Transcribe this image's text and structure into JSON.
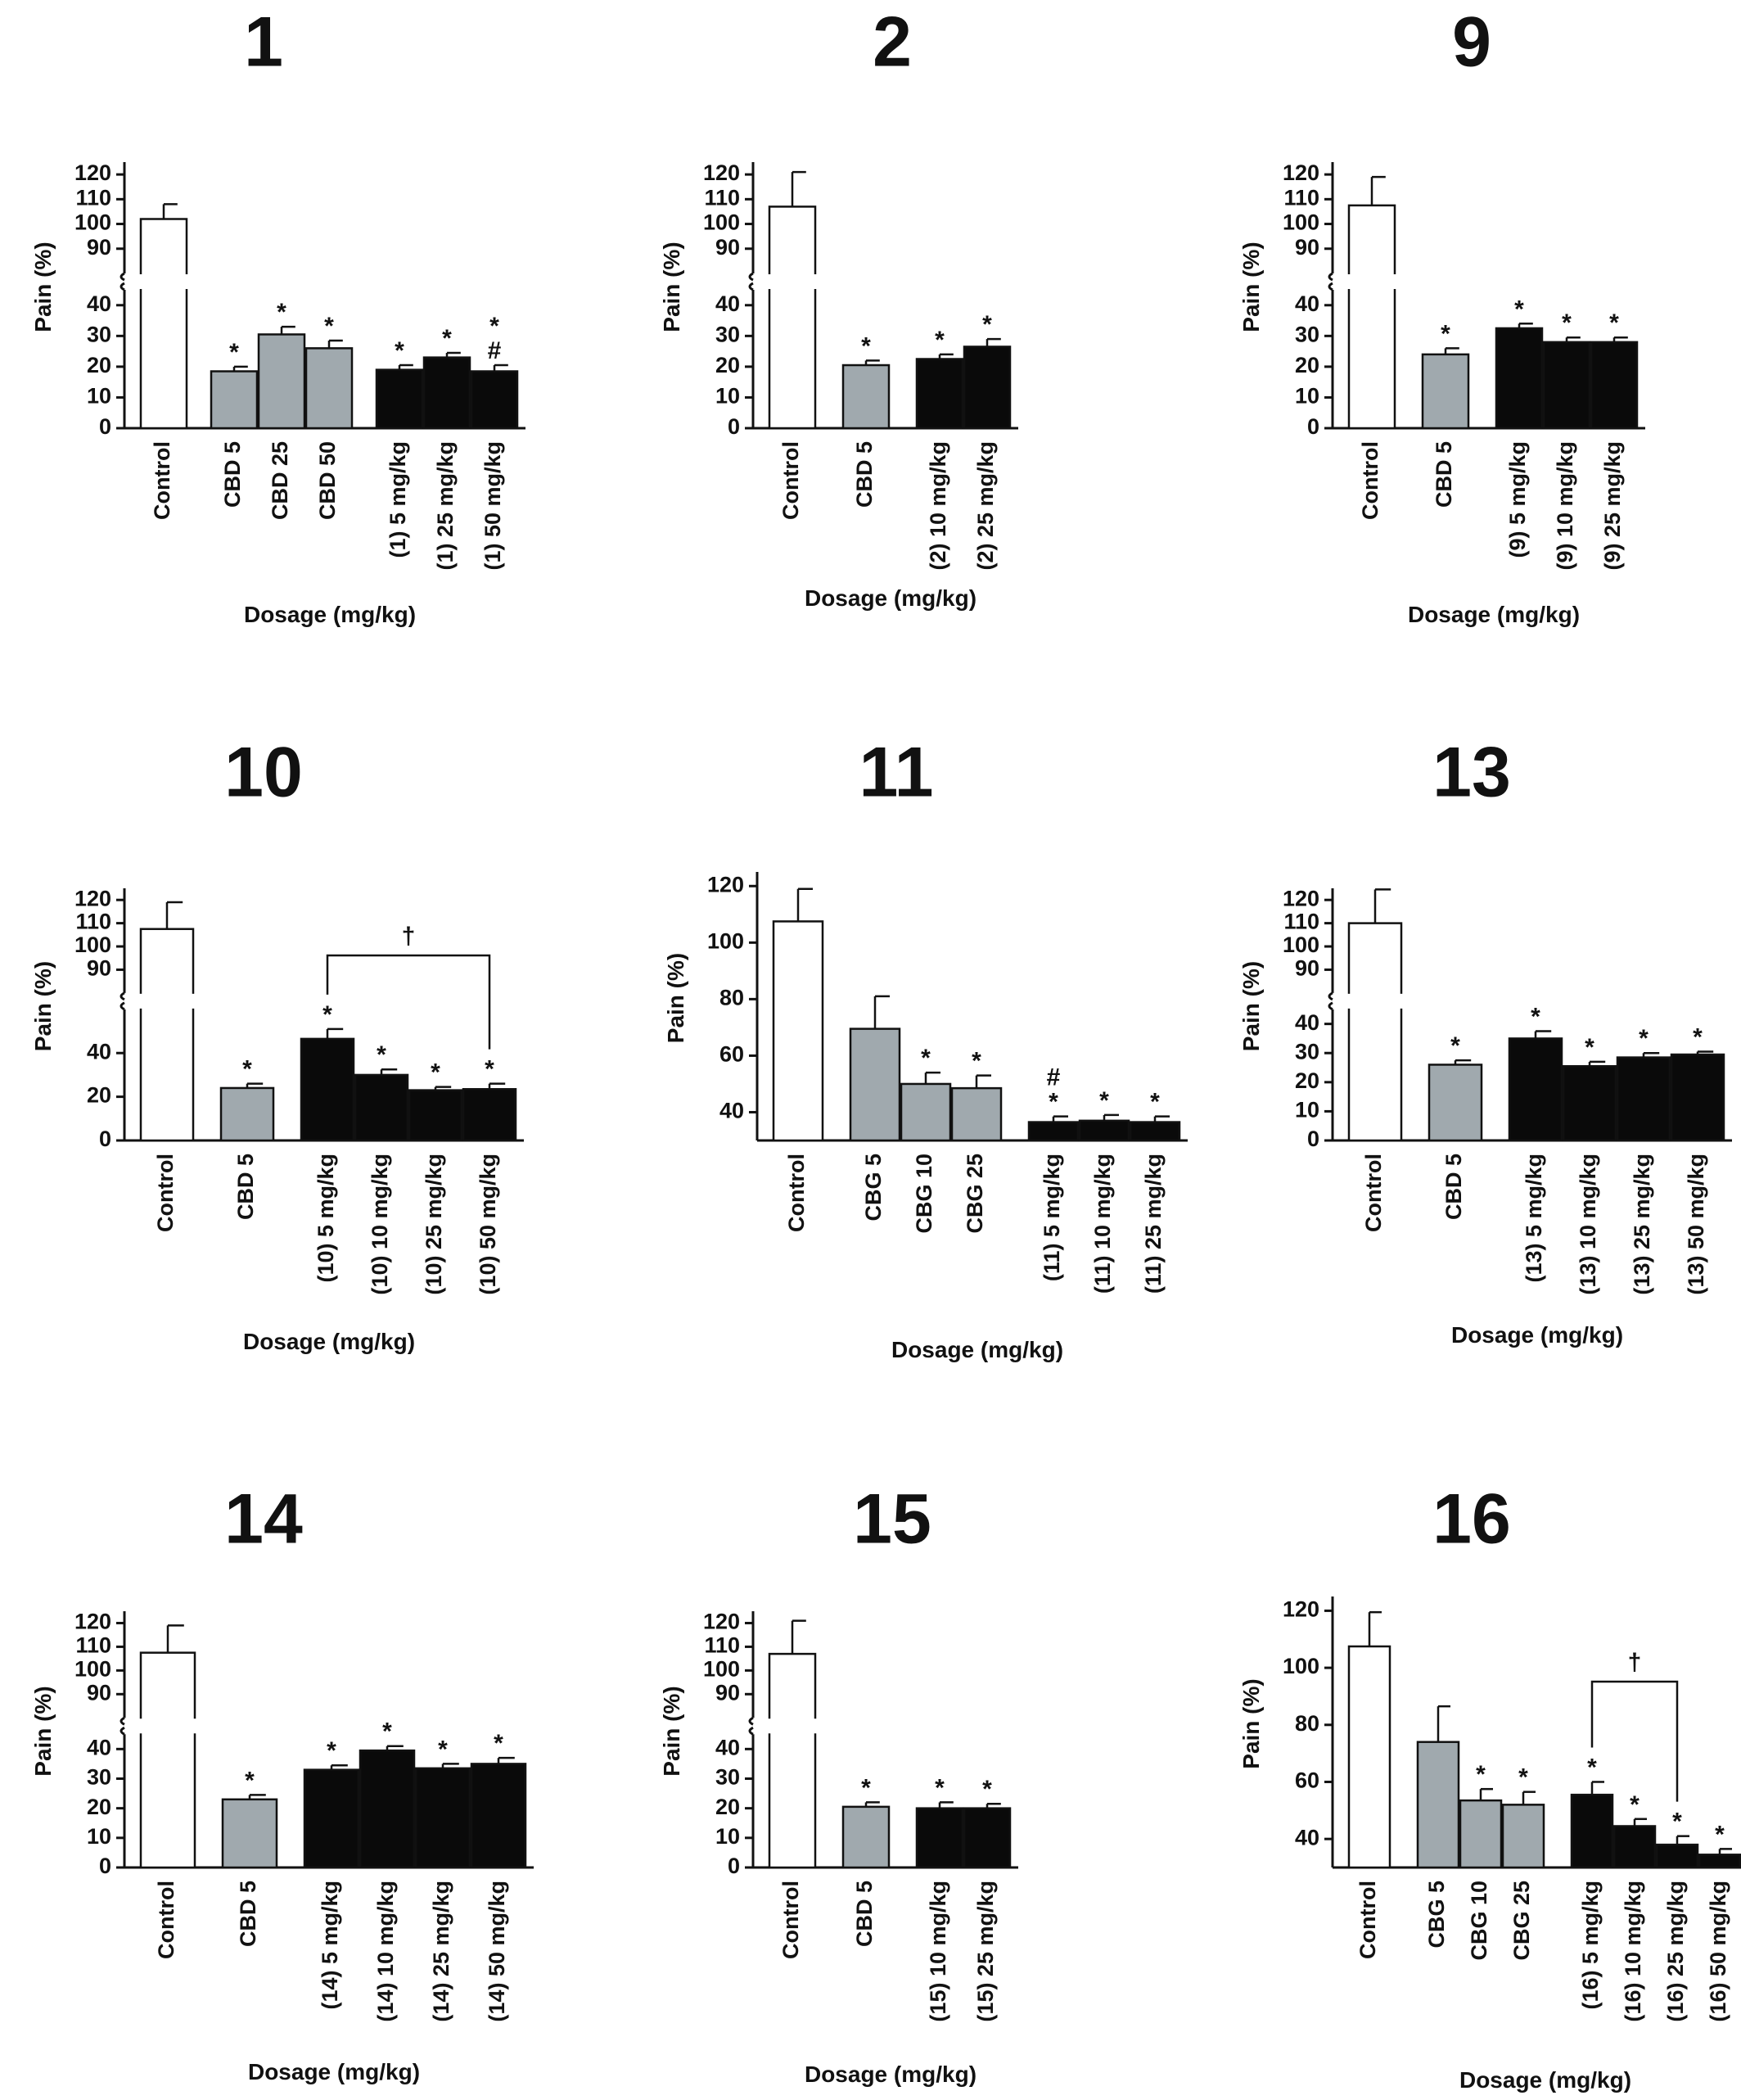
{
  "colors": {
    "control": "#ffffff",
    "reference": "#a0a9ae",
    "compound": "#0a0a0a",
    "ink": "#111111"
  },
  "chart_data": [
    {
      "type": "bar",
      "title": "1",
      "xlabel": "Dosage (mg/kg)",
      "ylabel": "Pain (%)",
      "axis_break": true,
      "ylim_lower": [
        0,
        45
      ],
      "ylim_upper": [
        80,
        125
      ],
      "yticks_lower": [
        0,
        10,
        20,
        30,
        40
      ],
      "yticks_upper": [
        90,
        100,
        110,
        120
      ],
      "groups": [
        [
          "Control"
        ],
        [
          "CBD 5",
          "CBD 25",
          "CBD 50"
        ],
        [
          "(1) 5 mg/kg",
          "(1) 25 mg/kg",
          "(1) 50 mg/kg"
        ]
      ],
      "categories": [
        "Control",
        "CBD 5",
        "CBD 25",
        "CBD 50",
        "(1) 5 mg/kg",
        "(1) 25 mg/kg",
        "(1) 50 mg/kg"
      ],
      "values": [
        102,
        18.5,
        30.5,
        26,
        19,
        23,
        18.5
      ],
      "errors": [
        6,
        1.5,
        2.5,
        2.5,
        1.5,
        1.5,
        2
      ],
      "kinds": [
        "control",
        "reference",
        "reference",
        "reference",
        "compound",
        "compound",
        "compound"
      ],
      "marks": [
        "",
        "*",
        "*",
        "*",
        "*",
        "*",
        "*\n#"
      ],
      "bracket": null
    },
    {
      "type": "bar",
      "title": "2",
      "xlabel": "Dosage (mg/kg)",
      "ylabel": "Pain (%)",
      "axis_break": true,
      "ylim_lower": [
        0,
        45
      ],
      "ylim_upper": [
        80,
        125
      ],
      "yticks_lower": [
        0,
        10,
        20,
        30,
        40
      ],
      "yticks_upper": [
        90,
        100,
        110,
        120
      ],
      "groups": [
        [
          "Control"
        ],
        [
          "CBD 5"
        ],
        [
          "(2) 10 mg/kg",
          "(2) 25 mg/kg"
        ]
      ],
      "categories": [
        "Control",
        "CBD 5",
        "(2) 10 mg/kg",
        "(2) 25 mg/kg"
      ],
      "values": [
        107,
        20.5,
        22.5,
        26.5
      ],
      "errors": [
        14,
        1.5,
        1.5,
        2.5
      ],
      "kinds": [
        "control",
        "reference",
        "compound",
        "compound"
      ],
      "marks": [
        "",
        "*",
        "*",
        "*"
      ],
      "bracket": null
    },
    {
      "type": "bar",
      "title": "9",
      "xlabel": "Dosage (mg/kg)",
      "ylabel": "Pain (%)",
      "axis_break": true,
      "ylim_lower": [
        0,
        45
      ],
      "ylim_upper": [
        80,
        125
      ],
      "yticks_lower": [
        0,
        10,
        20,
        30,
        40
      ],
      "yticks_upper": [
        90,
        100,
        110,
        120
      ],
      "groups": [
        [
          "Control"
        ],
        [
          "CBD 5"
        ],
        [
          "(9) 5 mg/kg",
          "(9) 10 mg/kg",
          "(9) 25 mg/kg"
        ]
      ],
      "categories": [
        "Control",
        "CBD 5",
        "(9) 5 mg/kg",
        "(9) 10 mg/kg",
        "(9) 25 mg/kg"
      ],
      "values": [
        107.5,
        24,
        32.5,
        28,
        28
      ],
      "errors": [
        11.5,
        2,
        1.5,
        1.5,
        1.5
      ],
      "kinds": [
        "control",
        "reference",
        "compound",
        "compound",
        "compound"
      ],
      "marks": [
        "",
        "*",
        "*",
        "*",
        "*"
      ],
      "bracket": null
    },
    {
      "type": "bar",
      "title": "10",
      "xlabel": "Dosage (mg/kg)",
      "ylabel": "Pain (%)",
      "axis_break": true,
      "ylim_lower": [
        0,
        60
      ],
      "ylim_upper": [
        80,
        125
      ],
      "yticks_lower": [
        0,
        20,
        40
      ],
      "yticks_upper": [
        90,
        100,
        110,
        120
      ],
      "groups": [
        [
          "Control"
        ],
        [
          "CBD 5"
        ],
        [
          "(10) 5 mg/kg",
          "(10) 10 mg/kg",
          "(10) 25 mg/kg",
          "(10) 50 mg/kg"
        ]
      ],
      "categories": [
        "Control",
        "CBD 5",
        "(10) 5 mg/kg",
        "(10) 10 mg/kg",
        "(10) 25 mg/kg",
        "(10) 50 mg/kg"
      ],
      "values": [
        107.5,
        24,
        46.5,
        30,
        23,
        23.5
      ],
      "errors": [
        11.5,
        2,
        4.5,
        2.5,
        1.5,
        2.5
      ],
      "kinds": [
        "control",
        "reference",
        "compound",
        "compound",
        "compound",
        "compound"
      ],
      "marks": [
        "",
        "*",
        "*",
        "*",
        "*",
        "*"
      ],
      "bracket": {
        "from": 2,
        "to": 5,
        "label": "†"
      }
    },
    {
      "type": "bar",
      "title": "11",
      "xlabel": "Dosage (mg/kg)",
      "ylabel": "Pain (%)",
      "axis_break": false,
      "ylim": [
        30,
        125
      ],
      "yticks": [
        40,
        60,
        80,
        100,
        120
      ],
      "groups": [
        [
          "Control"
        ],
        [
          "CBG 5",
          "CBG 10",
          "CBG 25"
        ],
        [
          "(11) 5 mg/kg",
          "(11) 10 mg/kg",
          "(11) 25 mg/kg"
        ]
      ],
      "categories": [
        "Control",
        "CBG 5",
        "CBG 10",
        "CBG 25",
        "(11) 5 mg/kg",
        "(11) 10 mg/kg",
        "(11) 25 mg/kg"
      ],
      "values": [
        107.5,
        69.5,
        50,
        48.5,
        36.5,
        37,
        36.5
      ],
      "errors": [
        11.5,
        11.5,
        4,
        4.5,
        2,
        2,
        2
      ],
      "kinds": [
        "control",
        "reference",
        "reference",
        "reference",
        "compound",
        "compound",
        "compound"
      ],
      "marks": [
        "",
        "",
        "*",
        "*",
        "#\n*",
        "*",
        "*"
      ],
      "bracket": null
    },
    {
      "type": "bar",
      "title": "13",
      "xlabel": "Dosage (mg/kg)",
      "ylabel": "Pain (%)",
      "axis_break": true,
      "ylim_lower": [
        0,
        45
      ],
      "ylim_upper": [
        80,
        125
      ],
      "yticks_lower": [
        0,
        10,
        20,
        30,
        40
      ],
      "yticks_upper": [
        90,
        100,
        110,
        120
      ],
      "groups": [
        [
          "Control"
        ],
        [
          "CBD 5"
        ],
        [
          "(13) 5 mg/kg",
          "(13) 10 mg/kg",
          "(13) 25 mg/kg",
          "(13) 50 mg/kg"
        ]
      ],
      "categories": [
        "Control",
        "CBD 5",
        "(13) 5 mg/kg",
        "(13) 10 mg/kg",
        "(13) 25 mg/kg",
        "(13) 50 mg/kg"
      ],
      "values": [
        110,
        26,
        35,
        25.5,
        28.5,
        29.5
      ],
      "errors": [
        14.5,
        1.5,
        2.5,
        1.5,
        1.5,
        1
      ],
      "kinds": [
        "control",
        "reference",
        "compound",
        "compound",
        "compound",
        "compound"
      ],
      "marks": [
        "",
        "*",
        "*",
        "*",
        "*",
        "*"
      ],
      "bracket": null
    },
    {
      "type": "bar",
      "title": "14",
      "xlabel": "Dosage (mg/kg)",
      "ylabel": "Pain (%)",
      "axis_break": true,
      "ylim_lower": [
        0,
        45
      ],
      "ylim_upper": [
        80,
        125
      ],
      "yticks_lower": [
        0,
        10,
        20,
        30,
        40
      ],
      "yticks_upper": [
        90,
        100,
        110,
        120
      ],
      "groups": [
        [
          "Control"
        ],
        [
          "CBD 5"
        ],
        [
          "(14) 5 mg/kg",
          "(14) 10 mg/kg",
          "(14) 25 mg/kg",
          "(14) 50 mg/kg"
        ]
      ],
      "categories": [
        "Control",
        "CBD 5",
        "(14) 5 mg/kg",
        "(14) 10 mg/kg",
        "(14) 25 mg/kg",
        "(14) 50 mg/kg"
      ],
      "values": [
        107.5,
        23,
        33,
        39.5,
        33.5,
        35
      ],
      "errors": [
        11.5,
        1.5,
        1.5,
        1.5,
        1.5,
        2
      ],
      "kinds": [
        "control",
        "reference",
        "compound",
        "compound",
        "compound",
        "compound"
      ],
      "marks": [
        "",
        "*",
        "*",
        "*",
        "*",
        "*"
      ],
      "bracket": null
    },
    {
      "type": "bar",
      "title": "15",
      "xlabel": "Dosage (mg/kg)",
      "ylabel": "Pain (%)",
      "axis_break": true,
      "ylim_lower": [
        0,
        45
      ],
      "ylim_upper": [
        80,
        125
      ],
      "yticks_lower": [
        0,
        10,
        20,
        30,
        40
      ],
      "yticks_upper": [
        90,
        100,
        110,
        120
      ],
      "groups": [
        [
          "Control"
        ],
        [
          "CBD 5"
        ],
        [
          "(15) 10 mg/kg",
          "(15) 25 mg/kg"
        ]
      ],
      "categories": [
        "Control",
        "CBD 5",
        "(15) 10 mg/kg",
        "(15) 25 mg/kg"
      ],
      "values": [
        107,
        20.5,
        20,
        20
      ],
      "errors": [
        14,
        1.5,
        2,
        1.5
      ],
      "kinds": [
        "control",
        "reference",
        "compound",
        "compound"
      ],
      "marks": [
        "",
        "*",
        "*",
        "*"
      ],
      "bracket": null
    },
    {
      "type": "bar",
      "title": "16",
      "xlabel": "Dosage (mg/kg)",
      "ylabel": "Pain (%)",
      "axis_break": false,
      "ylim": [
        30,
        125
      ],
      "yticks": [
        40,
        60,
        80,
        100,
        120
      ],
      "groups": [
        [
          "Control"
        ],
        [
          "CBG 5",
          "CBG 10",
          "CBG 25"
        ],
        [
          "(16) 5 mg/kg",
          "(16) 10 mg/kg",
          "(16) 25 mg/kg",
          "(16) 50 mg/kg"
        ]
      ],
      "categories": [
        "Control",
        "CBG 5",
        "CBG 10",
        "CBG 25",
        "(16) 5 mg/kg",
        "(16) 10 mg/kg",
        "(16) 25 mg/kg",
        "(16) 50 mg/kg"
      ],
      "values": [
        107.5,
        74,
        53.5,
        52,
        55.5,
        44.5,
        38,
        34.5
      ],
      "errors": [
        12,
        12.5,
        4,
        4.5,
        4.5,
        2.5,
        3,
        2
      ],
      "kinds": [
        "control",
        "reference",
        "reference",
        "reference",
        "compound",
        "compound",
        "compound",
        "compound"
      ],
      "marks": [
        "",
        "",
        "*",
        "*",
        "*",
        "*",
        "*",
        "*"
      ],
      "bracket": {
        "from": 4,
        "to": 6,
        "label": "†"
      }
    }
  ]
}
